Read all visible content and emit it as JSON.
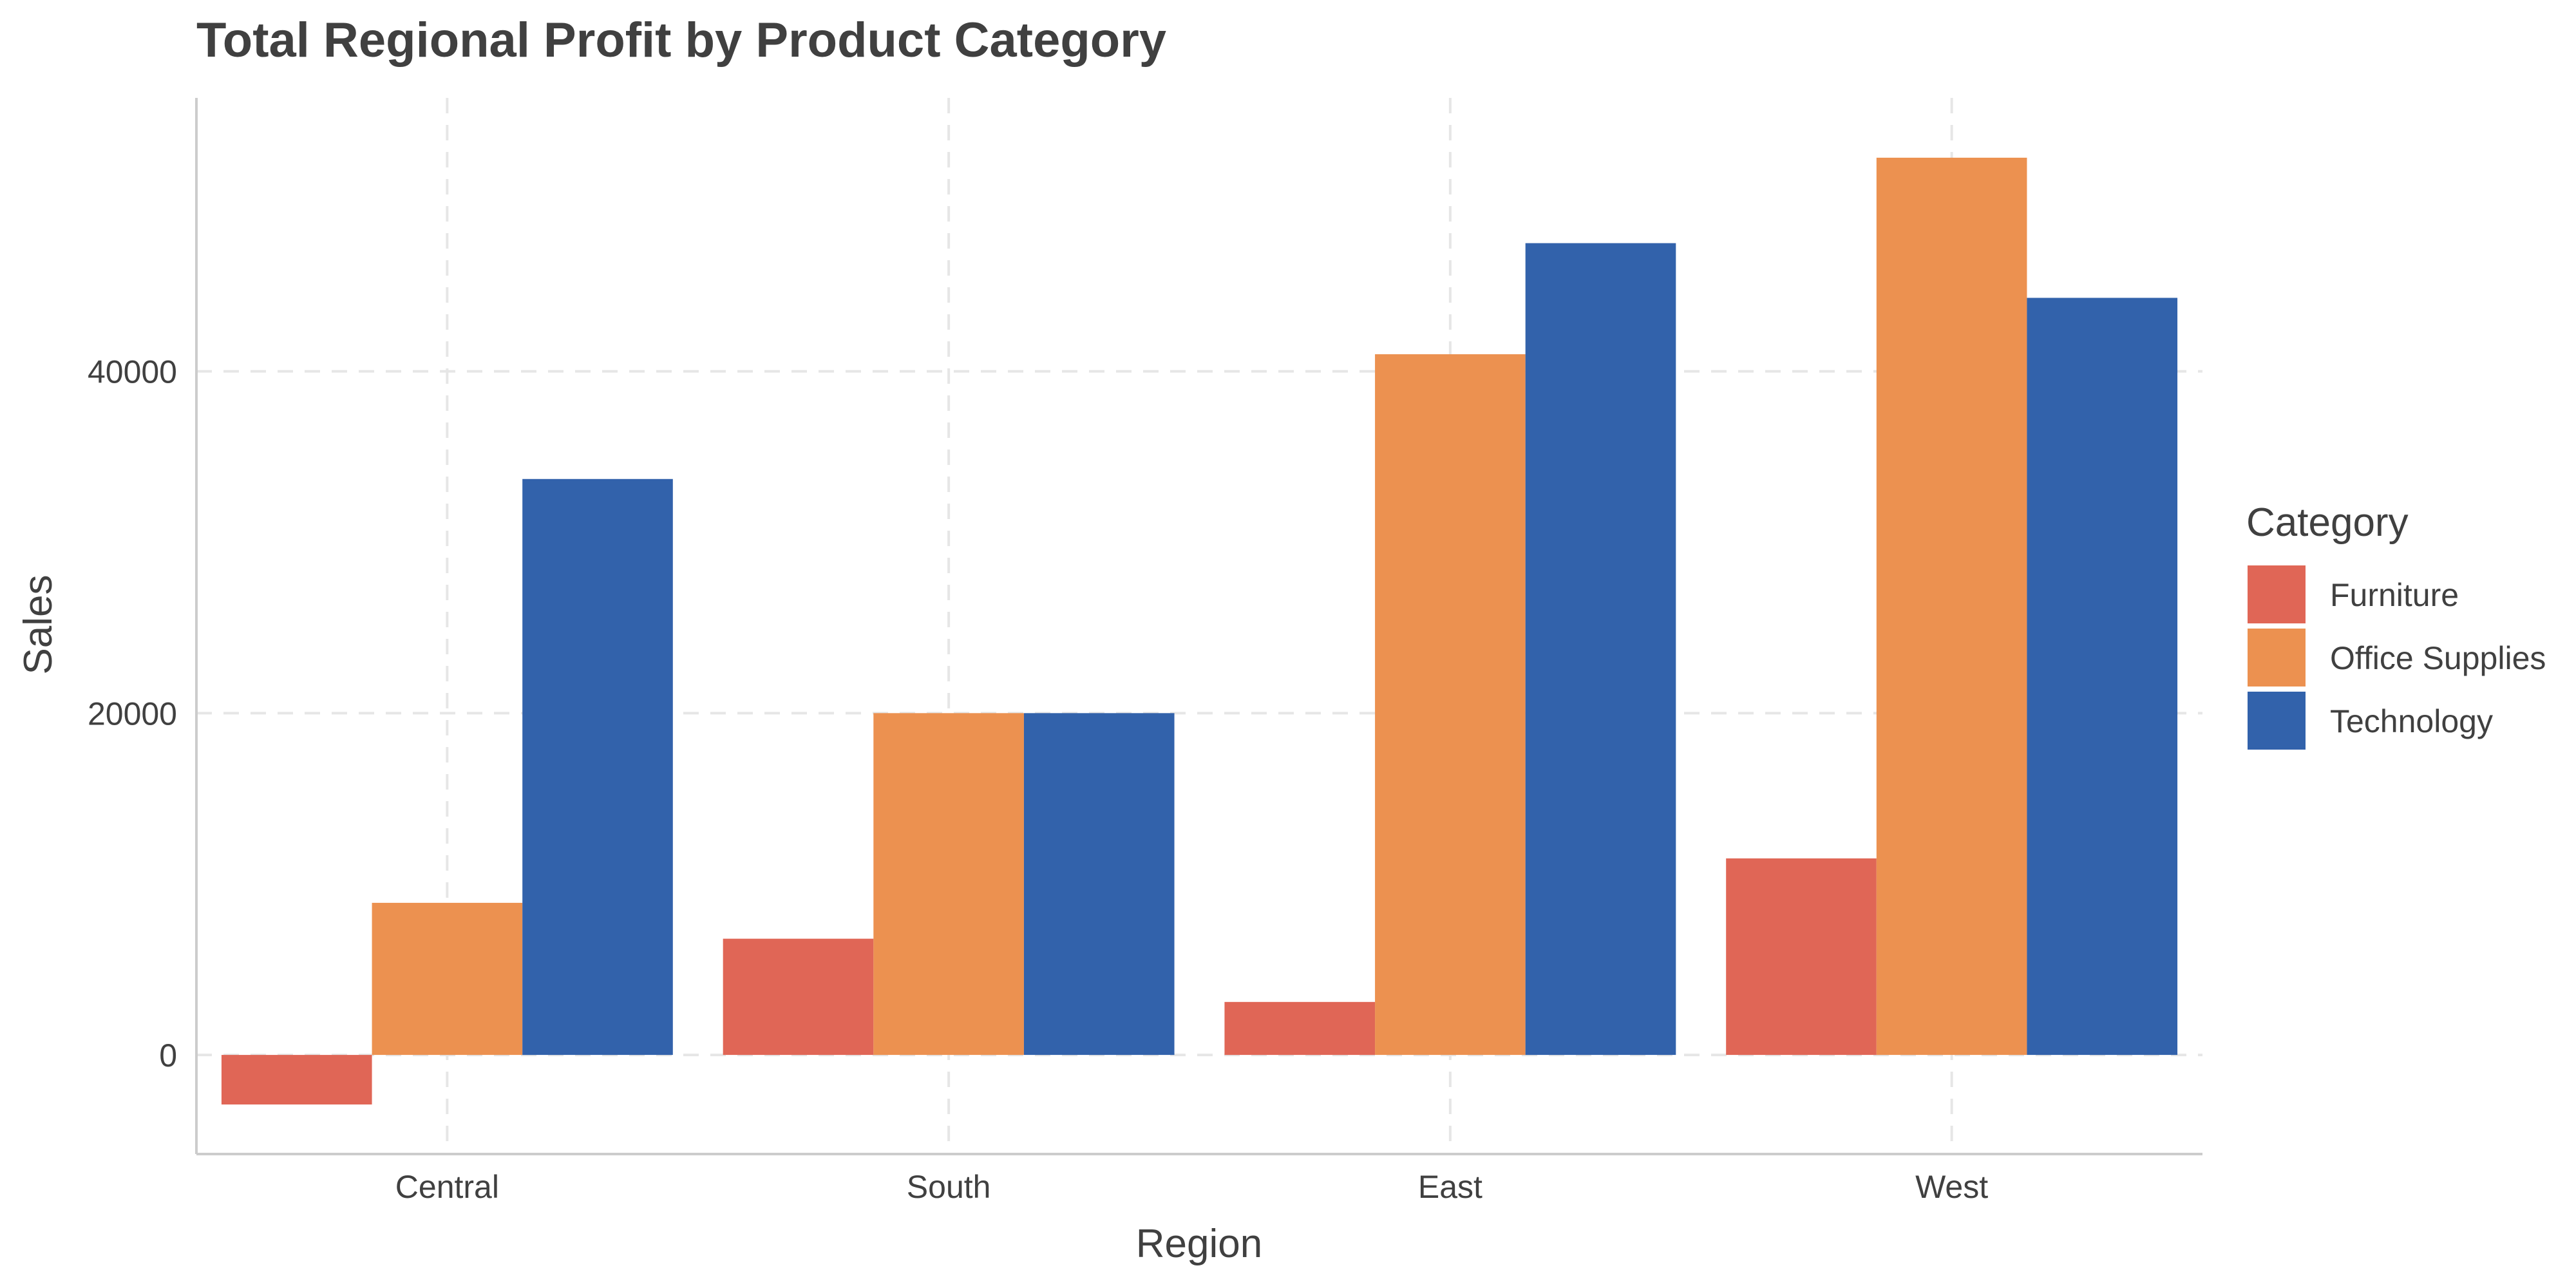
{
  "chart_data": {
    "type": "bar",
    "title": "Total Regional Profit by Product Category",
    "xlabel": "Region",
    "ylabel": "Sales",
    "categories": [
      "Central",
      "South",
      "East",
      "West"
    ],
    "series": [
      {
        "name": "Furniture",
        "color": "#e06656",
        "values": [
          -2900,
          6800,
          3100,
          11500
        ]
      },
      {
        "name": "Office Supplies",
        "color": "#ec9150",
        "values": [
          8900,
          20000,
          41000,
          52500
        ]
      },
      {
        "name": "Technology",
        "color": "#3262ab",
        "values": [
          33700,
          20000,
          47500,
          44300
        ]
      }
    ],
    "ylim": [
      -5800,
      56000
    ],
    "yticks": [
      0,
      20000,
      40000
    ],
    "ytick_labels": [
      "0",
      "20000",
      "40000"
    ],
    "grid": true,
    "legend": {
      "title": "Category",
      "position": "right"
    }
  }
}
